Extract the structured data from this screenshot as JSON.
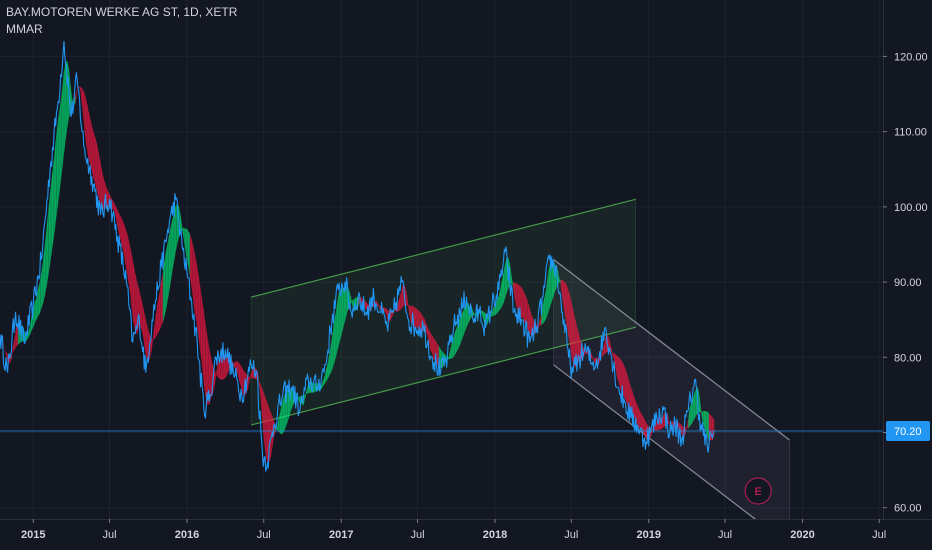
{
  "header": {
    "symbol_title": "BAY.MOTOREN WERKE AG ST, 1D, XETR",
    "indicator": "MMAR"
  },
  "colors": {
    "background": "#131722",
    "grid": "#1e2230",
    "price_line": "#2196f3",
    "ribbon_up": "#00e676",
    "ribbon_down": "#ff1744",
    "channel_up": "#4caf50",
    "channel_down": "#9aa0b0",
    "price_tag": "#2196f3",
    "earnings": "#e91e63",
    "axis_text": "#d1d4dc"
  },
  "price_tag": {
    "value": "70.20"
  },
  "earnings_marker": {
    "label": "E",
    "icon": "earnings-icon",
    "date": "2019-09"
  },
  "chart_data": {
    "type": "line",
    "title": "BAY.MOTOREN WERKE AG ST, 1D, XETR",
    "xlabel": "",
    "ylabel": "",
    "ylim": [
      58.5,
      127.5
    ],
    "xlim": [
      "2014-10-14",
      "2020-07-10"
    ],
    "grid": true,
    "y_ticks": [
      "60.00",
      "70.00",
      "80.00",
      "90.00",
      "100.00",
      "110.00",
      "120.00"
    ],
    "x_ticks": [
      {
        "date": "2015-01-01",
        "label": "2015",
        "year": true
      },
      {
        "date": "2015-07-01",
        "label": "Jul",
        "year": false
      },
      {
        "date": "2016-01-01",
        "label": "2016",
        "year": true
      },
      {
        "date": "2016-07-01",
        "label": "Jul",
        "year": false
      },
      {
        "date": "2017-01-01",
        "label": "2017",
        "year": true
      },
      {
        "date": "2017-07-01",
        "label": "Jul",
        "year": false
      },
      {
        "date": "2018-01-01",
        "label": "2018",
        "year": true
      },
      {
        "date": "2018-07-01",
        "label": "Jul",
        "year": false
      },
      {
        "date": "2019-01-01",
        "label": "2019",
        "year": true
      },
      {
        "date": "2019-07-01",
        "label": "Jul",
        "year": false
      },
      {
        "date": "2020-01-01",
        "label": "2020",
        "year": true
      },
      {
        "date": "2020-07-01",
        "label": "Jul",
        "year": false
      }
    ],
    "series": [
      {
        "kind": "price",
        "points": [
          [
            "2014-10-14",
            83
          ],
          [
            "2014-11-01",
            78
          ],
          [
            "2014-11-20",
            86
          ],
          [
            "2014-12-10",
            82
          ],
          [
            "2015-01-01",
            87
          ],
          [
            "2015-01-20",
            93
          ],
          [
            "2015-02-10",
            105
          ],
          [
            "2015-03-01",
            114
          ],
          [
            "2015-03-15",
            122
          ],
          [
            "2015-04-01",
            112
          ],
          [
            "2015-04-15",
            117
          ],
          [
            "2015-05-01",
            108
          ],
          [
            "2015-05-20",
            104
          ],
          [
            "2015-06-10",
            99
          ],
          [
            "2015-07-01",
            101
          ],
          [
            "2015-07-20",
            96
          ],
          [
            "2015-08-10",
            90
          ],
          [
            "2015-08-25",
            82
          ],
          [
            "2015-09-10",
            85
          ],
          [
            "2015-09-25",
            78
          ],
          [
            "2015-10-10",
            85
          ],
          [
            "2015-11-01",
            92
          ],
          [
            "2015-11-20",
            98
          ],
          [
            "2015-12-05",
            101
          ],
          [
            "2015-12-20",
            95
          ],
          [
            "2016-01-10",
            88
          ],
          [
            "2016-01-25",
            82
          ],
          [
            "2016-02-10",
            73
          ],
          [
            "2016-02-25",
            75
          ],
          [
            "2016-03-10",
            80
          ],
          [
            "2016-04-01",
            81
          ],
          [
            "2016-04-20",
            78
          ],
          [
            "2016-05-10",
            75
          ],
          [
            "2016-06-01",
            79
          ],
          [
            "2016-06-15",
            78
          ],
          [
            "2016-06-28",
            67
          ],
          [
            "2016-07-10",
            66
          ],
          [
            "2016-07-25",
            71
          ],
          [
            "2016-08-15",
            75
          ],
          [
            "2016-09-05",
            76
          ],
          [
            "2016-09-25",
            73
          ],
          [
            "2016-10-15",
            77
          ],
          [
            "2016-11-05",
            76
          ],
          [
            "2016-11-25",
            79
          ],
          [
            "2016-12-10",
            85
          ],
          [
            "2016-12-25",
            89
          ],
          [
            "2017-01-10",
            90
          ],
          [
            "2017-01-25",
            86
          ],
          [
            "2017-02-10",
            88
          ],
          [
            "2017-03-01",
            86
          ],
          [
            "2017-03-20",
            88
          ],
          [
            "2017-04-05",
            86
          ],
          [
            "2017-04-20",
            84
          ],
          [
            "2017-05-05",
            86
          ],
          [
            "2017-05-25",
            90
          ],
          [
            "2017-06-10",
            85
          ],
          [
            "2017-06-25",
            84
          ],
          [
            "2017-07-15",
            84
          ],
          [
            "2017-08-05",
            80
          ],
          [
            "2017-08-25",
            78
          ],
          [
            "2017-09-10",
            80
          ],
          [
            "2017-09-25",
            84
          ],
          [
            "2017-10-10",
            86
          ],
          [
            "2017-10-25",
            88
          ],
          [
            "2017-11-10",
            85
          ],
          [
            "2017-11-25",
            86
          ],
          [
            "2017-12-10",
            84
          ],
          [
            "2017-12-25",
            87
          ],
          [
            "2018-01-10",
            89
          ],
          [
            "2018-01-25",
            94
          ],
          [
            "2018-02-05",
            90
          ],
          [
            "2018-02-15",
            86
          ],
          [
            "2018-03-05",
            85
          ],
          [
            "2018-03-25",
            82
          ],
          [
            "2018-04-10",
            84
          ],
          [
            "2018-04-25",
            88
          ],
          [
            "2018-05-10",
            93
          ],
          [
            "2018-05-25",
            92
          ],
          [
            "2018-06-10",
            86
          ],
          [
            "2018-06-25",
            80
          ],
          [
            "2018-07-05",
            78
          ],
          [
            "2018-07-20",
            80
          ],
          [
            "2018-08-05",
            81
          ],
          [
            "2018-08-20",
            79
          ],
          [
            "2018-09-05",
            80
          ],
          [
            "2018-09-20",
            84
          ],
          [
            "2018-10-05",
            80
          ],
          [
            "2018-10-20",
            76
          ],
          [
            "2018-11-05",
            74
          ],
          [
            "2018-11-20",
            72
          ],
          [
            "2018-12-05",
            71
          ],
          [
            "2018-12-20",
            69
          ],
          [
            "2019-01-05",
            70
          ],
          [
            "2019-01-20",
            72
          ],
          [
            "2019-02-05",
            73
          ],
          [
            "2019-02-20",
            70
          ],
          [
            "2019-03-05",
            71
          ],
          [
            "2019-03-20",
            69
          ],
          [
            "2019-04-05",
            73
          ],
          [
            "2019-04-20",
            77
          ],
          [
            "2019-05-05",
            71
          ],
          [
            "2019-05-20",
            68
          ],
          [
            "2019-06-05",
            70.2
          ]
        ]
      },
      {
        "kind": "mmar_ribbon",
        "ribbon_width": [
          6,
          2.5
        ],
        "regime_segments": [
          {
            "from": "2014-10-14",
            "to": "2014-11-25",
            "trend": "down"
          },
          {
            "from": "2014-11-25",
            "to": "2015-04-10",
            "trend": "up"
          },
          {
            "from": "2015-04-10",
            "to": "2015-11-01",
            "trend": "down"
          },
          {
            "from": "2015-11-01",
            "to": "2016-01-05",
            "trend": "up"
          },
          {
            "from": "2016-01-05",
            "to": "2016-07-25",
            "trend": "down"
          },
          {
            "from": "2016-07-25",
            "to": "2017-02-10",
            "trend": "up"
          },
          {
            "from": "2017-02-10",
            "to": "2017-08-20",
            "trend": "down"
          },
          {
            "from": "2017-08-20",
            "to": "2018-02-10",
            "trend": "up"
          },
          {
            "from": "2018-02-10",
            "to": "2018-04-20",
            "trend": "down"
          },
          {
            "from": "2018-04-20",
            "to": "2018-06-05",
            "trend": "up"
          },
          {
            "from": "2018-06-05",
            "to": "2019-04-01",
            "trend": "down"
          },
          {
            "from": "2019-04-01",
            "to": "2019-05-20",
            "trend": "up"
          },
          {
            "from": "2019-05-20",
            "to": "2019-06-05",
            "trend": "down"
          }
        ]
      }
    ],
    "channels": [
      {
        "name": "rising",
        "color_key": "channel_up",
        "upper": [
          [
            "2016-06-01",
            88
          ],
          [
            "2018-12-01",
            101
          ]
        ],
        "lower": [
          [
            "2016-06-01",
            71
          ],
          [
            "2018-12-01",
            84
          ]
        ]
      },
      {
        "name": "falling",
        "color_key": "channel_down",
        "upper": [
          [
            "2018-05-20",
            93
          ],
          [
            "2019-12-01",
            69
          ]
        ],
        "lower": [
          [
            "2018-05-20",
            79
          ],
          [
            "2019-12-01",
            55
          ]
        ]
      }
    ],
    "horizontal_line": {
      "value": 70.2
    },
    "annotations": [
      "E"
    ]
  }
}
